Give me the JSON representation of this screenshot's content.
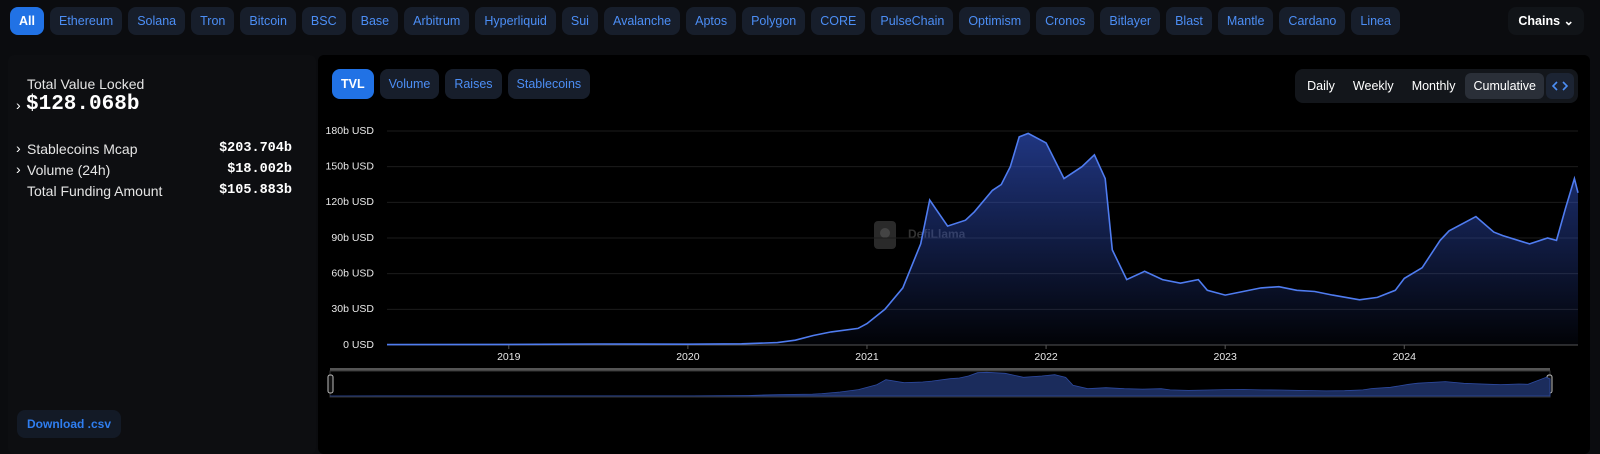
{
  "chain_tabs": [
    "All",
    "Ethereum",
    "Solana",
    "Tron",
    "Bitcoin",
    "BSC",
    "Base",
    "Arbitrum",
    "Hyperliquid",
    "Sui",
    "Avalanche",
    "Aptos",
    "Polygon",
    "CORE",
    "PulseChain",
    "Optimism",
    "Cronos",
    "Bitlayer",
    "Blast",
    "Mantle",
    "Cardano",
    "Linea"
  ],
  "chains_menu": "Chains",
  "summary": {
    "label": "Total Value Locked",
    "value": "$128.068b",
    "rows": [
      {
        "label": "Stablecoins Mcap",
        "value": "$203.704b"
      },
      {
        "label": "Volume (24h)",
        "value": "$18.002b"
      },
      {
        "label": "Total Funding Amount",
        "value": "$105.883b"
      }
    ]
  },
  "download": "Download .csv",
  "chart_tabs": [
    "TVL",
    "Volume",
    "Raises",
    "Stablecoins"
  ],
  "period_options": [
    "Daily",
    "Weekly",
    "Monthly",
    "Cumulative"
  ],
  "chart_data": {
    "type": "area",
    "watermark": "DefiLlama",
    "x": [
      2018.32,
      2019,
      2019.5,
      2020,
      2020.3,
      2020.5,
      2020.6,
      2020.7,
      2020.8,
      2020.95,
      2021.0,
      2021.1,
      2021.2,
      2021.3,
      2021.35,
      2021.45,
      2021.55,
      2021.6,
      2021.7,
      2021.75,
      2021.8,
      2021.85,
      2021.9,
      2022.0,
      2022.1,
      2022.2,
      2022.27,
      2022.33,
      2022.37,
      2022.45,
      2022.55,
      2022.65,
      2022.75,
      2022.85,
      2022.9,
      2023.0,
      2023.1,
      2023.2,
      2023.3,
      2023.4,
      2023.5,
      2023.6,
      2023.75,
      2023.85,
      2023.95,
      2024.0,
      2024.1,
      2024.2,
      2024.25,
      2024.4,
      2024.5,
      2024.55,
      2024.7,
      2024.8,
      2024.85,
      2024.9,
      2024.95,
      2024.97
    ],
    "values": [
      0.3,
      0.5,
      0.8,
      0.7,
      1,
      2,
      4,
      8,
      11,
      14,
      18,
      30,
      48,
      85,
      122,
      100,
      105,
      112,
      130,
      135,
      150,
      175,
      178,
      170,
      140,
      150,
      160,
      140,
      80,
      55,
      62,
      55,
      52,
      55,
      46,
      42,
      45,
      48,
      49,
      46,
      45,
      42,
      38,
      40,
      46,
      56,
      65,
      88,
      96,
      108,
      95,
      92,
      85,
      90,
      88,
      115,
      140,
      128
    ],
    "color": "#4f7cf0",
    "xlim": [
      2018.32,
      2024.97
    ],
    "ylim": [
      0,
      180
    ],
    "xticks": [
      2019,
      2020,
      2021,
      2022,
      2023,
      2024
    ],
    "yticks": [
      {
        "value": 0,
        "label": "0 USD"
      },
      {
        "value": 30,
        "label": "30b USD"
      },
      {
        "value": 60,
        "label": "60b USD"
      },
      {
        "value": 90,
        "label": "90b USD"
      },
      {
        "value": 120,
        "label": "120b USD"
      },
      {
        "value": 150,
        "label": "150b USD"
      },
      {
        "value": 180,
        "label": "180b USD"
      }
    ],
    "grid": true
  }
}
